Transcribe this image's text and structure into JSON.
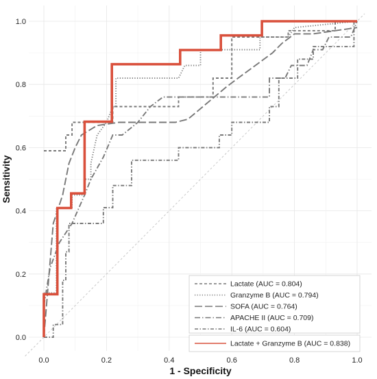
{
  "chart_data": {
    "type": "line",
    "xlabel": "1 - Specificity",
    "ylabel": "Sensitivity",
    "xlim": [
      0,
      1
    ],
    "ylim": [
      0,
      1
    ],
    "xticks": [
      "0.0",
      "0.2",
      "0.4",
      "0.6",
      "0.8",
      "1.0"
    ],
    "yticks": [
      "0.0",
      "0.2",
      "0.4",
      "0.6",
      "0.8",
      "1.0"
    ],
    "grid": true,
    "reference_line": "diagonal",
    "legend_position": "bottom-right",
    "series": [
      {
        "name": "Lactate (AUC = 0.804)",
        "dash": "dashed",
        "color": "#777777",
        "points": [
          [
            0,
            0.59
          ],
          [
            0.07,
            0.59
          ],
          [
            0.07,
            0.64
          ],
          [
            0.09,
            0.64
          ],
          [
            0.09,
            0.68
          ],
          [
            0.22,
            0.68
          ],
          [
            0.22,
            0.73
          ],
          [
            0.43,
            0.73
          ],
          [
            0.43,
            0.76
          ],
          [
            0.54,
            0.76
          ],
          [
            0.54,
            0.82
          ],
          [
            0.6,
            0.82
          ],
          [
            0.6,
            0.95
          ],
          [
            0.78,
            0.95
          ],
          [
            0.78,
            0.97
          ],
          [
            0.93,
            0.97
          ],
          [
            0.93,
            1.0
          ],
          [
            1.0,
            1.0
          ]
        ]
      },
      {
        "name": "Granzyme B (AUC = 0.794)",
        "dash": "dotted",
        "color": "#777777",
        "points": [
          [
            0,
            0.14
          ],
          [
            0.04,
            0.14
          ],
          [
            0.04,
            0.41
          ],
          [
            0.09,
            0.41
          ],
          [
            0.09,
            0.45
          ],
          [
            0.13,
            0.45
          ],
          [
            0.13,
            0.5
          ],
          [
            0.15,
            0.5
          ],
          [
            0.15,
            0.55
          ],
          [
            0.17,
            0.64
          ],
          [
            0.2,
            0.68
          ],
          [
            0.22,
            0.73
          ],
          [
            0.23,
            0.73
          ],
          [
            0.23,
            0.82
          ],
          [
            0.43,
            0.82
          ],
          [
            0.45,
            0.86
          ],
          [
            0.5,
            0.86
          ],
          [
            0.5,
            0.91
          ],
          [
            0.69,
            0.91
          ],
          [
            0.69,
            0.95
          ],
          [
            0.78,
            0.95
          ],
          [
            0.8,
            0.98
          ],
          [
            1.0,
            1.0
          ]
        ]
      },
      {
        "name": "SOFA (AUC = 0.764)",
        "dash": "longdash",
        "color": "#777777",
        "points": [
          [
            0,
            0
          ],
          [
            0.03,
            0.36
          ],
          [
            0.06,
            0.45
          ],
          [
            0.08,
            0.55
          ],
          [
            0.1,
            0.6
          ],
          [
            0.12,
            0.64
          ],
          [
            0.17,
            0.67
          ],
          [
            0.24,
            0.68
          ],
          [
            0.37,
            0.68
          ],
          [
            0.42,
            0.68
          ],
          [
            0.46,
            0.69
          ],
          [
            0.58,
            0.79
          ],
          [
            0.62,
            0.82
          ],
          [
            0.73,
            0.9
          ],
          [
            0.76,
            0.93
          ],
          [
            0.8,
            0.96
          ],
          [
            0.86,
            0.96
          ],
          [
            1.0,
            0.98
          ]
        ]
      },
      {
        "name": "APACHE II (AUC = 0.709)",
        "dash": "dashdot",
        "color": "#777777",
        "points": [
          [
            0,
            0.1
          ],
          [
            0.02,
            0.22
          ],
          [
            0.05,
            0.3
          ],
          [
            0.09,
            0.36
          ],
          [
            0.13,
            0.45
          ],
          [
            0.15,
            0.5
          ],
          [
            0.19,
            0.57
          ],
          [
            0.22,
            0.64
          ],
          [
            0.25,
            0.64
          ],
          [
            0.3,
            0.68
          ],
          [
            0.34,
            0.73
          ],
          [
            0.38,
            0.76
          ],
          [
            0.72,
            0.76
          ],
          [
            0.72,
            0.82
          ],
          [
            0.77,
            0.82
          ],
          [
            0.79,
            0.86
          ],
          [
            0.84,
            0.86
          ],
          [
            0.86,
            0.91
          ],
          [
            0.89,
            0.91
          ],
          [
            0.91,
            0.95
          ],
          [
            0.98,
            0.95
          ],
          [
            1.0,
            1.0
          ]
        ]
      },
      {
        "name": "IL-6 (AUC = 0.604)",
        "dash": "twodash",
        "color": "#777777",
        "points": [
          [
            0,
            0.0
          ],
          [
            0.03,
            0.0
          ],
          [
            0.03,
            0.04
          ],
          [
            0.06,
            0.04
          ],
          [
            0.06,
            0.18
          ],
          [
            0.07,
            0.18
          ],
          [
            0.07,
            0.27
          ],
          [
            0.08,
            0.27
          ],
          [
            0.08,
            0.36
          ],
          [
            0.19,
            0.36
          ],
          [
            0.19,
            0.41
          ],
          [
            0.22,
            0.41
          ],
          [
            0.22,
            0.48
          ],
          [
            0.28,
            0.48
          ],
          [
            0.28,
            0.56
          ],
          [
            0.43,
            0.56
          ],
          [
            0.43,
            0.6
          ],
          [
            0.56,
            0.6
          ],
          [
            0.56,
            0.64
          ],
          [
            0.6,
            0.64
          ],
          [
            0.6,
            0.68
          ],
          [
            0.72,
            0.68
          ],
          [
            0.72,
            0.73
          ],
          [
            0.75,
            0.73
          ],
          [
            0.75,
            0.82
          ],
          [
            0.81,
            0.82
          ],
          [
            0.81,
            0.88
          ],
          [
            0.86,
            0.88
          ],
          [
            0.86,
            0.92
          ],
          [
            0.99,
            0.92
          ],
          [
            0.99,
            1.0
          ],
          [
            1.0,
            1.0
          ]
        ]
      },
      {
        "name": "Lactate + Granzyme B (AUC = 0.838)",
        "dash": "solid",
        "color": "#d9503c",
        "points": [
          [
            0,
            0
          ],
          [
            0,
            0.136
          ],
          [
            0.043,
            0.136
          ],
          [
            0.043,
            0.409
          ],
          [
            0.087,
            0.409
          ],
          [
            0.087,
            0.455
          ],
          [
            0.13,
            0.455
          ],
          [
            0.13,
            0.682
          ],
          [
            0.217,
            0.682
          ],
          [
            0.217,
            0.864
          ],
          [
            0.435,
            0.864
          ],
          [
            0.435,
            0.909
          ],
          [
            0.565,
            0.909
          ],
          [
            0.565,
            0.955
          ],
          [
            0.696,
            0.955
          ],
          [
            0.696,
            1.0
          ],
          [
            1.0,
            1.0
          ]
        ]
      }
    ]
  }
}
